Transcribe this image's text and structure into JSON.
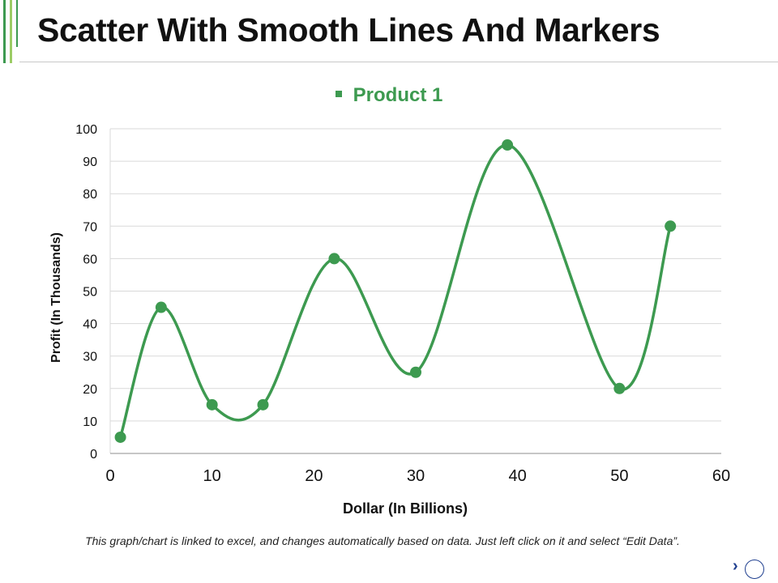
{
  "slide": {
    "title": "Scatter With Smooth Lines And Markers",
    "footnote": "This graph/chart is linked to excel, and changes automatically based on data. Just left click on it and select “Edit Data”.",
    "nav_next_icon": "›"
  },
  "colors": {
    "series": "#3d9a50",
    "accent_light": "#9ccc65",
    "grid": "#d9d9d9"
  },
  "chart_data": {
    "type": "scatter",
    "style": "smooth-lines-with-markers",
    "title": "",
    "xlabel": "Dollar (In Billions)",
    "ylabel": "Profit  (In Thousands)",
    "xlim": [
      0,
      60
    ],
    "ylim": [
      0,
      100
    ],
    "xticks": [
      0,
      10,
      20,
      30,
      40,
      50,
      60
    ],
    "yticks": [
      0,
      10,
      20,
      30,
      40,
      50,
      60,
      70,
      80,
      90,
      100
    ],
    "grid": "horizontal",
    "legend_position": "top",
    "series": [
      {
        "name": "Product 1",
        "x": [
          1,
          5,
          10,
          15,
          22,
          30,
          39,
          50,
          55
        ],
        "y": [
          5,
          45,
          15,
          15,
          60,
          25,
          95,
          20,
          70
        ]
      }
    ]
  }
}
